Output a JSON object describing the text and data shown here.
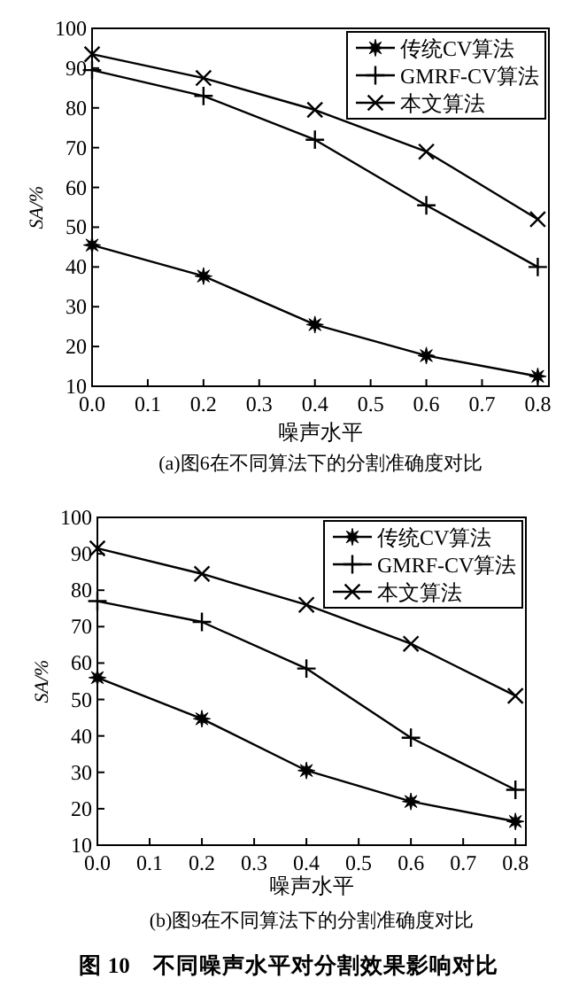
{
  "chart_data": [
    {
      "type": "line",
      "xlabel": "噪声水平",
      "ylabel": "SA/%",
      "annotations": [
        "(a)图6在不同算法下的分割准确度对比"
      ],
      "x": [
        0,
        0.2,
        0.4,
        0.6,
        0.8
      ],
      "xlim": [
        0,
        0.82
      ],
      "xticks": [
        {
          "value": 0,
          "label": "0.0"
        },
        0.1,
        0.2,
        0.3,
        0.4,
        0.5,
        0.6,
        0.7,
        0.8
      ],
      "ylim": [
        10,
        100
      ],
      "yticks": [
        10,
        20,
        30,
        40,
        50,
        60,
        70,
        80,
        90,
        100
      ],
      "legend": "top right",
      "grid": false,
      "line_style": "solid",
      "series": [
        {
          "name": "传统CV算法",
          "color": "#000000",
          "marker": "star",
          "values": [
            45.5,
            37.7,
            25.5,
            17.7,
            12.5
          ]
        },
        {
          "name": "GMRF-CV算法",
          "color": "#000000",
          "marker": "plus",
          "values": [
            89.5,
            83,
            72,
            55.5,
            40
          ]
        },
        {
          "name": "本文算法",
          "color": "#000000",
          "marker": "cross",
          "values": [
            93.5,
            87.5,
            79.5,
            69,
            52
          ]
        }
      ]
    },
    {
      "type": "line",
      "xlabel": "噪声水平",
      "ylabel": "SA/%",
      "annotations": [
        "(b)图9在不同算法下的分割准确度对比",
        "图 10　不同噪声水平对分割效果影响对比"
      ],
      "x": [
        0,
        0.2,
        0.4,
        0.6,
        0.8
      ],
      "xlim": [
        0,
        0.82
      ],
      "xticks": [
        {
          "value": 0,
          "label": "0.0"
        },
        0.1,
        0.2,
        0.3,
        0.4,
        0.5,
        0.6,
        0.7,
        0.8
      ],
      "ylim": [
        10,
        100
      ],
      "yticks": [
        10,
        20,
        30,
        40,
        50,
        60,
        70,
        80,
        90,
        100
      ],
      "legend": "top right",
      "grid": false,
      "line_style": "solid",
      "series": [
        {
          "name": "传统CV算法",
          "color": "#000000",
          "marker": "star",
          "values": [
            56,
            44.7,
            30.5,
            22,
            16.5
          ]
        },
        {
          "name": "GMRF-CV算法",
          "color": "#000000",
          "marker": "plus",
          "values": [
            77,
            71.3,
            58.5,
            39.5,
            25.2
          ]
        },
        {
          "name": "本文算法",
          "color": "#000000",
          "marker": "cross",
          "values": [
            91.5,
            84.5,
            76,
            65.3,
            51
          ]
        }
      ]
    }
  ]
}
